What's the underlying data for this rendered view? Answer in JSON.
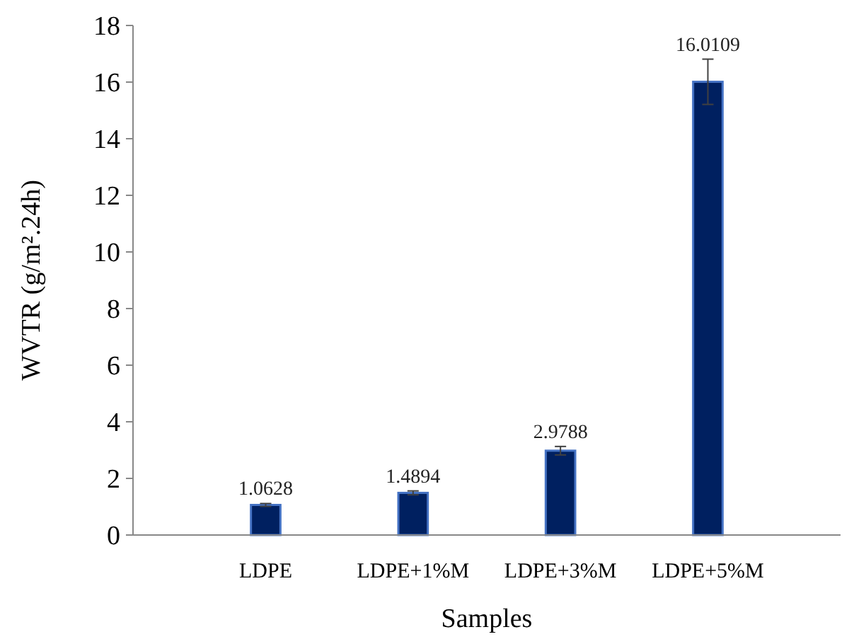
{
  "chart_data": {
    "type": "bar",
    "xlabel": "Samples",
    "ylabel": "WVTR (g/m².24h)",
    "categories": [
      "LDPE",
      "LDPE+1%M",
      "LDPE+3%M",
      "LDPE+5%M"
    ],
    "values": [
      1.0628,
      1.4894,
      2.9788,
      16.0109
    ],
    "errors": [
      0.05,
      0.07,
      0.15,
      0.8
    ],
    "color": "#002060",
    "ylim": [
      0,
      18
    ],
    "yticks": [
      0,
      2,
      4,
      6,
      8,
      10,
      12,
      14,
      16,
      18
    ],
    "data_labels": true
  }
}
